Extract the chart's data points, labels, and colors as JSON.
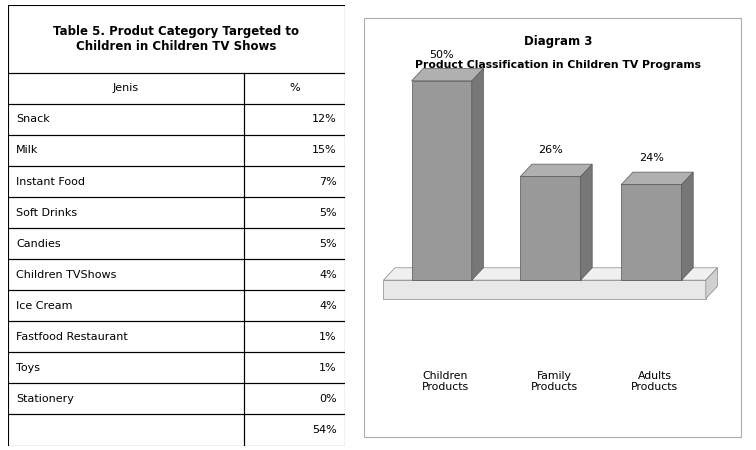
{
  "table_title": "Table 5. Produt Category Targeted to\nChildren in Children TV Shows",
  "table_headers": [
    "Jenis",
    "%"
  ],
  "table_rows": [
    [
      "Snack",
      "12%"
    ],
    [
      "Milk",
      "15%"
    ],
    [
      "Instant Food",
      "7%"
    ],
    [
      "Soft Drinks",
      "5%"
    ],
    [
      "Candies",
      "5%"
    ],
    [
      "Children TVShows",
      "4%"
    ],
    [
      "Ice Cream",
      "4%"
    ],
    [
      "Fastfood Restaurant",
      "1%"
    ],
    [
      "Toys",
      "1%"
    ],
    [
      "Stationery",
      "0%"
    ],
    [
      "",
      "54%"
    ]
  ],
  "chart_title_line1": "Diagram 3",
  "chart_title_line2": "Product Classification in Children TV Programs",
  "bar_categories": [
    "Children\nProducts",
    "Family\nProducts",
    "Adults\nProducts"
  ],
  "bar_values": [
    50,
    26,
    24
  ],
  "bar_labels": [
    "50%",
    "26%",
    "24%"
  ],
  "bar_color_face": "#999999",
  "bar_color_side": "#777777",
  "bar_color_top": "#b0b0b0",
  "background_color": "#ffffff",
  "chart_bg": "#ffffff",
  "chart_border_color": "#aaaaaa",
  "floor_face_color": "#e8e8e8",
  "floor_top_color": "#f0f0f0",
  "floor_side_color": "#d0d0d0"
}
